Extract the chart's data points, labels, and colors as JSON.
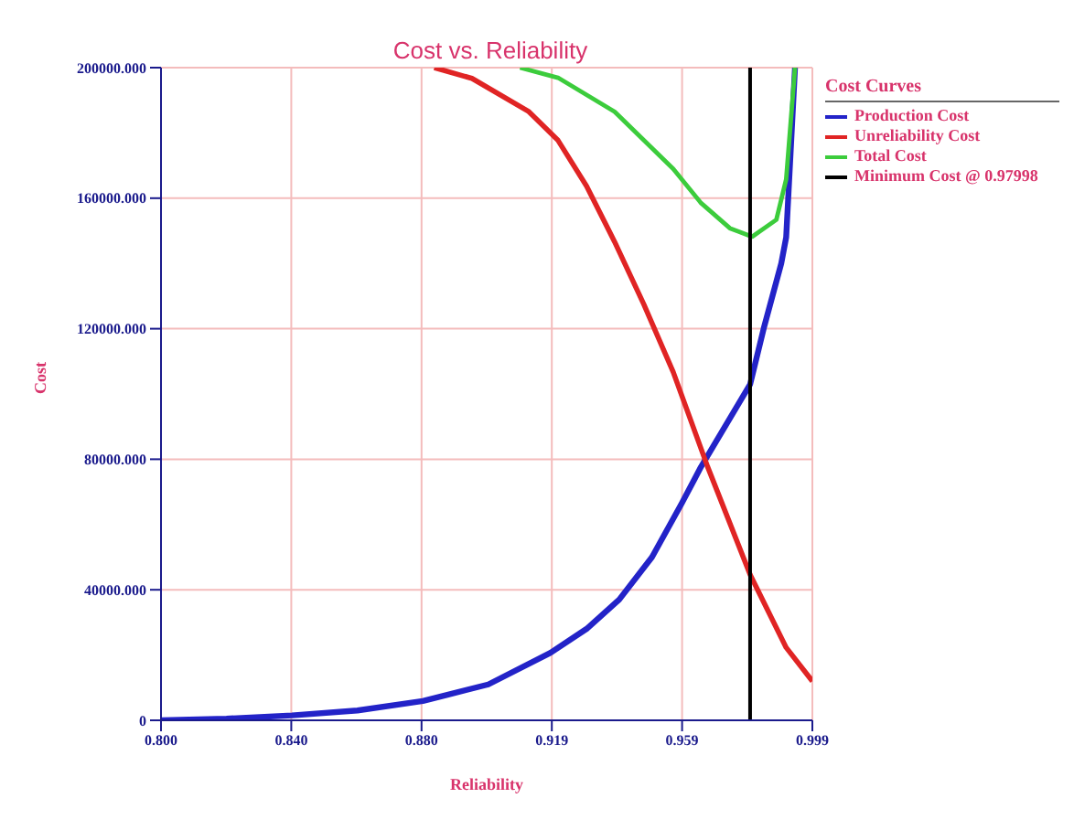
{
  "chart_data": {
    "type": "line",
    "title": "Cost vs. Reliability",
    "xlabel": "Reliability",
    "ylabel": "Cost",
    "legend_title": "Cost Curves",
    "xlim": [
      0.8,
      0.999
    ],
    "xticks": [
      {
        "value": 0.8,
        "label": "0.800"
      },
      {
        "value": 0.8398,
        "label": "0.840"
      },
      {
        "value": 0.8796,
        "label": "0.880"
      },
      {
        "value": 0.9194,
        "label": "0.919"
      },
      {
        "value": 0.9592,
        "label": "0.959"
      },
      {
        "value": 0.999,
        "label": "0.999"
      }
    ],
    "ylim": [
      0,
      200000
    ],
    "yticks": [
      0,
      {
        "value": 40000,
        "label": "40000.000"
      },
      {
        "value": 80000,
        "label": "80000.000"
      },
      {
        "value": 120000,
        "label": "120000.000"
      },
      {
        "value": 160000,
        "label": "160000.000"
      },
      {
        "value": 200000,
        "label": "200000.000"
      }
    ],
    "grid": true,
    "legend": "top right",
    "marker": "none",
    "line_style": "solid",
    "series": [
      {
        "name": "Production Cost",
        "color": "#2323c8",
        "x": [
          0.8,
          0.82,
          0.84,
          0.86,
          0.88,
          0.9,
          0.919,
          0.93,
          0.94,
          0.95,
          0.959,
          0.965,
          0.98,
          0.9843,
          0.9895,
          0.991,
          0.9937
        ],
        "values": [
          0,
          500,
          1500,
          3000,
          5900,
          11000,
          20700,
          28000,
          37000,
          50000,
          66300,
          77700,
          103000,
          120700,
          140000,
          148000,
          200000
        ]
      },
      {
        "name": "Unreliability Cost",
        "color": "#e02424",
        "x": [
          0.8835,
          0.895,
          0.9124,
          0.9213,
          0.93,
          0.9386,
          0.9475,
          0.9565,
          0.967,
          0.98,
          0.991,
          0.999
        ],
        "values": [
          200000,
          196700,
          186500,
          177700,
          163700,
          146600,
          127500,
          106700,
          77700,
          44600,
          22300,
          12000
        ]
      },
      {
        "name": "Total Cost",
        "color": "#3ccc3c",
        "x": [
          0.9097,
          0.9213,
          0.9386,
          0.9565,
          0.965,
          0.9738,
          0.9806,
          0.988,
          0.991,
          0.9937
        ],
        "values": [
          200000,
          196900,
          186500,
          169000,
          158500,
          150800,
          148200,
          153400,
          165800,
          200000
        ]
      },
      {
        "name": "Minimum Cost @ 0.97998",
        "color": "#000000",
        "x": [
          0.97998,
          0.97998
        ],
        "values": [
          0,
          200000
        ]
      }
    ]
  }
}
